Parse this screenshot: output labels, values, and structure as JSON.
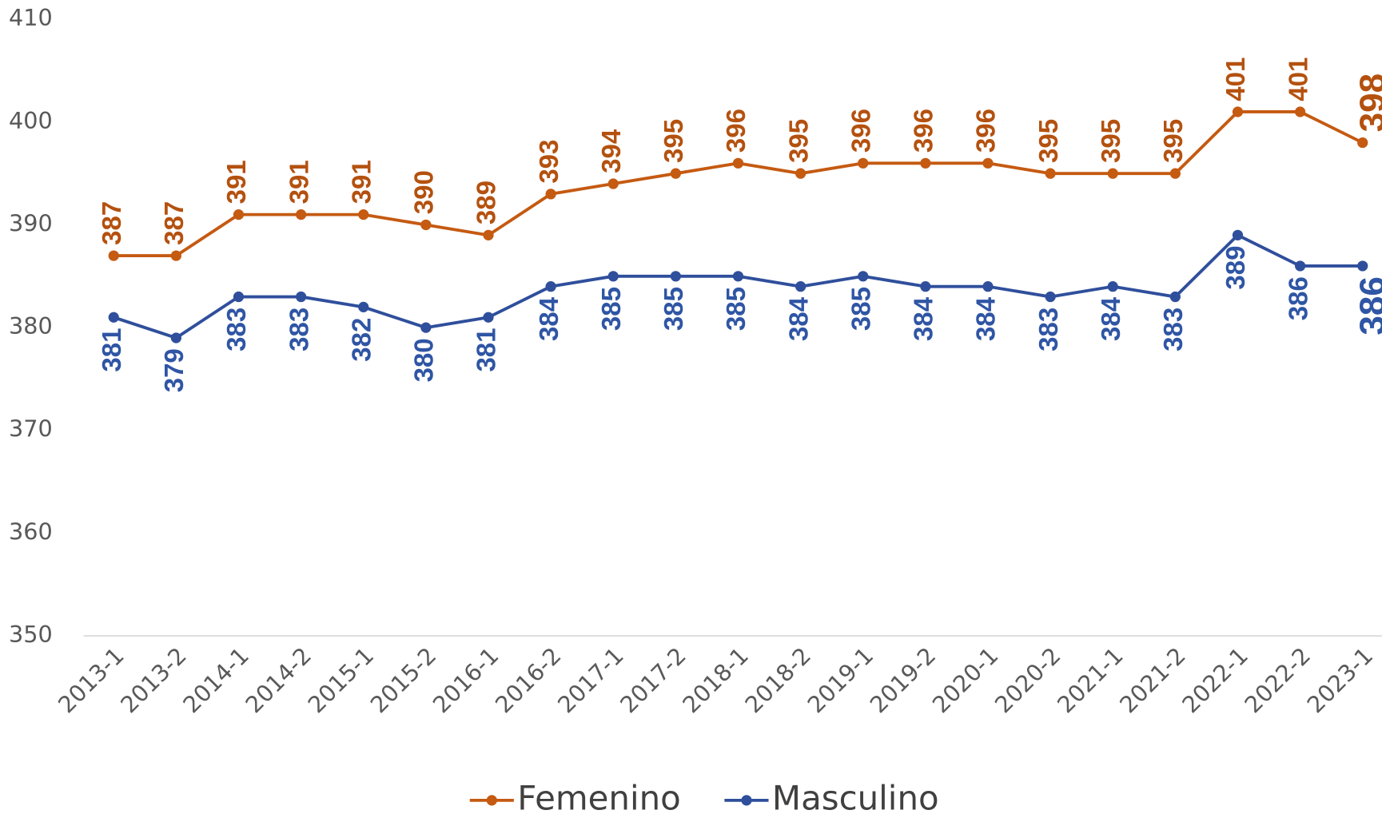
{
  "chart_data": {
    "type": "line",
    "categories": [
      "2013-1",
      "2013-2",
      "2014-1",
      "2014-2",
      "2015-1",
      "2015-2",
      "2016-1",
      "2016-2",
      "2017-1",
      "2017-2",
      "2018-1",
      "2018-2",
      "2019-1",
      "2019-2",
      "2020-1",
      "2020-2",
      "2021-1",
      "2021-2",
      "2022-1",
      "2022-2",
      "2023-1"
    ],
    "series": [
      {
        "name": "Femenino",
        "color": "#c55a11",
        "label_color": "#b4510f",
        "label_position": "above",
        "values": [
          387,
          387,
          391,
          391,
          391,
          390,
          389,
          393,
          394,
          395,
          396,
          395,
          396,
          396,
          396,
          395,
          395,
          395,
          401,
          401,
          398
        ]
      },
      {
        "name": "Masculino",
        "color": "#2f4f9c",
        "label_color": "#2f55a4",
        "label_position": "below",
        "values": [
          381,
          379,
          383,
          383,
          382,
          380,
          381,
          384,
          385,
          385,
          385,
          384,
          385,
          384,
          384,
          383,
          384,
          383,
          389,
          386,
          386
        ]
      }
    ],
    "ylim": [
      350,
      410
    ],
    "yticks": [
      350,
      360,
      370,
      380,
      390,
      400,
      410
    ],
    "grid": false,
    "legend": "bottom"
  }
}
